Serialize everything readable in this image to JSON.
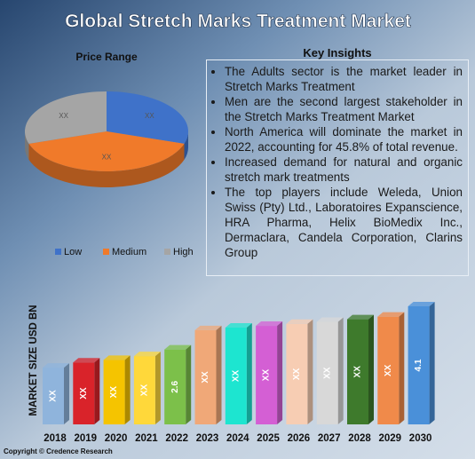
{
  "header": {
    "title": "Global Stretch Marks Treatment Market"
  },
  "chart_data": [
    {
      "type": "pie",
      "title": "Price Range",
      "categories": [
        "Low",
        "Medium",
        "High"
      ],
      "values": [
        30,
        40,
        30
      ],
      "value_labels": [
        "XX",
        "XX",
        "XX"
      ],
      "colors": [
        "#3f72c9",
        "#f07a2a",
        "#a5a5a5"
      ],
      "legend": "bottom"
    },
    {
      "type": "bar",
      "y_label": "MARKET SIZE USD BN",
      "categories": [
        "2018",
        "2019",
        "2020",
        "2021",
        "2022",
        "2023",
        "2024",
        "2025",
        "2026",
        "2027",
        "2028",
        "2029",
        "2030"
      ],
      "values": [
        1.97,
        2.15,
        2.24,
        2.37,
        2.6,
        3.27,
        3.36,
        3.42,
        3.49,
        3.56,
        3.65,
        3.74,
        4.1
      ],
      "value_labels": [
        "XX",
        "XX",
        "XX",
        "XX",
        "2.6",
        "XX",
        "XX",
        "XX",
        "XX",
        "XX",
        "XX",
        "XX",
        "4.1"
      ],
      "colors": [
        "#8fb4dc",
        "#d9232a",
        "#f5c400",
        "#ffd83a",
        "#7cc04a",
        "#f0a878",
        "#1de5d0",
        "#d45fd4",
        "#f7cdb3",
        "#d8d8d8",
        "#3e7a2c",
        "#f08a4a",
        "#4a90d9"
      ]
    }
  ],
  "insights": {
    "title": "Key Insights",
    "items": [
      "The Adults sector is the market leader in Stretch Marks Treatment",
      "Men are the second largest stakeholder in the Stretch Marks Treatment Market",
      "North America will dominate the market in 2022, accounting for 45.8% of total revenue.",
      "Increased demand for natural and organic stretch mark treatments",
      "The top players include Weleda, Union Swiss (Pty) Ltd., Laboratoires Expanscience, HRA Pharma, Helix BioMedix Inc., Dermaclara, Candela Corporation, Clarins Group"
    ]
  },
  "footer": "Copyright © Credence Research"
}
